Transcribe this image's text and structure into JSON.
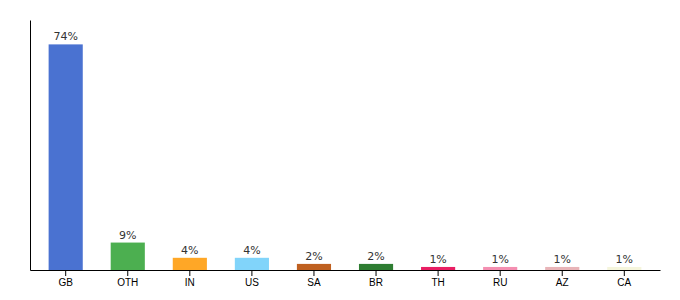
{
  "chart_data": {
    "type": "bar",
    "categories": [
      "GB",
      "OTH",
      "IN",
      "US",
      "SA",
      "BR",
      "TH",
      "RU",
      "AZ",
      "CA"
    ],
    "values": [
      74,
      9,
      4,
      4,
      2,
      2,
      1,
      1,
      1,
      1
    ],
    "value_labels": [
      "74%",
      "9%",
      "4%",
      "4%",
      "2%",
      "2%",
      "1%",
      "1%",
      "1%",
      "1%"
    ],
    "colors": [
      "#4a72d1",
      "#4caf50",
      "#ffa726",
      "#81d4fa",
      "#bf6020",
      "#2e7d32",
      "#e91e63",
      "#f48fb1",
      "#e8b4b8",
      "#f5f5dc"
    ],
    "ylim": [
      0,
      82
    ],
    "data_labels": true,
    "tick_labels": "x",
    "grid": false
  }
}
